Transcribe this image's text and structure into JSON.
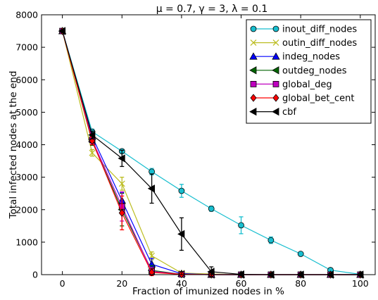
{
  "chart_data": {
    "type": "line",
    "title": "μ = 0.7,   γ = 3,  λ = 0.1",
    "xlabel": "Fraction of imunized nodes in %",
    "ylabel": "Total infected nodes at the end",
    "xlim": [
      -7,
      105
    ],
    "ylim": [
      0,
      8000
    ],
    "xticks": [
      0,
      20,
      40,
      60,
      80,
      100
    ],
    "yticks": [
      0,
      1000,
      2000,
      3000,
      4000,
      5000,
      6000,
      7000,
      8000
    ],
    "grid": false,
    "legend_position": "top-right",
    "series": [
      {
        "name": "inout_diff_nodes",
        "color": "#17becf",
        "marker": "circle",
        "marker_fill": "#17becf",
        "x": [
          0,
          10,
          20,
          30,
          40,
          50,
          60,
          70,
          80,
          90,
          100
        ],
        "y": [
          7500,
          4400,
          3800,
          3170,
          2580,
          2030,
          1520,
          1060,
          640,
          140,
          10
        ],
        "err": [
          0,
          80,
          60,
          100,
          200,
          80,
          260,
          100,
          40,
          40,
          0
        ]
      },
      {
        "name": "outin_diff_nodes",
        "color": "#bcbd22",
        "marker": "x",
        "marker_fill": "none",
        "x": [
          0,
          10,
          20,
          30,
          40,
          50,
          60,
          70,
          80,
          90,
          100
        ],
        "y": [
          7500,
          3750,
          2800,
          580,
          50,
          20,
          0,
          0,
          0,
          0,
          0
        ],
        "err": [
          0,
          100,
          200,
          120,
          40,
          0,
          0,
          0,
          0,
          0,
          0
        ]
      },
      {
        "name": "indeg_nodes",
        "color": "#0000ff",
        "marker": "triangle-up",
        "marker_fill": "#0000ff",
        "x": [
          0,
          10,
          20,
          30,
          40,
          50,
          60,
          70,
          80,
          90,
          100
        ],
        "y": [
          7500,
          4250,
          2280,
          320,
          30,
          0,
          0,
          0,
          0,
          0,
          0
        ],
        "err": [
          0,
          100,
          250,
          180,
          30,
          0,
          0,
          0,
          0,
          0,
          0
        ]
      },
      {
        "name": "outdeg_nodes",
        "color": "#006400",
        "marker": "triangle-left",
        "marker_fill": "#006400",
        "x": [
          0,
          10,
          20,
          30,
          40,
          50,
          60,
          70,
          80,
          90,
          100
        ],
        "y": [
          7500,
          4100,
          2000,
          130,
          10,
          0,
          0,
          0,
          0,
          0,
          0
        ],
        "err": [
          0,
          120,
          500,
          150,
          20,
          0,
          0,
          0,
          0,
          0,
          0
        ]
      },
      {
        "name": "global_deg",
        "color": "#bf00bf",
        "marker": "square",
        "marker_fill": "#bf00bf",
        "x": [
          0,
          10,
          20,
          30,
          40,
          50,
          60,
          70,
          80,
          90,
          100
        ],
        "y": [
          7500,
          4150,
          2100,
          100,
          10,
          0,
          0,
          0,
          0,
          0,
          0
        ],
        "err": [
          0,
          120,
          450,
          120,
          20,
          0,
          0,
          0,
          0,
          0,
          0
        ]
      },
      {
        "name": "global_bet_cent",
        "color": "#ff0000",
        "marker": "diamond",
        "marker_fill": "#ff0000",
        "x": [
          0,
          10,
          20,
          30,
          40,
          50,
          60,
          70,
          80,
          90,
          100
        ],
        "y": [
          7500,
          4120,
          1900,
          70,
          10,
          0,
          0,
          0,
          0,
          0,
          0
        ],
        "err": [
          0,
          120,
          520,
          100,
          20,
          0,
          0,
          0,
          0,
          0,
          0
        ]
      },
      {
        "name": "cbf",
        "color": "#000000",
        "marker": "triangle-left",
        "marker_fill": "#000000",
        "x": [
          0,
          10,
          20,
          30,
          40,
          50,
          60,
          70,
          80,
          90,
          100
        ],
        "y": [
          7500,
          4300,
          3580,
          2650,
          1250,
          90,
          10,
          0,
          0,
          0,
          0
        ],
        "err": [
          0,
          120,
          250,
          450,
          500,
          150,
          0,
          0,
          0,
          0,
          0
        ]
      }
    ]
  }
}
